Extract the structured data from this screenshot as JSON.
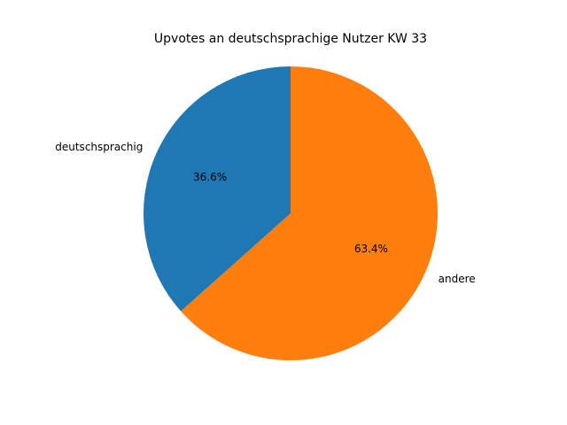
{
  "chart_data": {
    "type": "pie",
    "title": "Upvotes an deutschsprachige Nutzer KW 33",
    "categories": [
      "deutschsprachig",
      "andere"
    ],
    "values": [
      36.6,
      63.4
    ],
    "value_labels": [
      "36.6%",
      "63.4%"
    ],
    "colors": [
      "#1f77b4",
      "#ff7f0e"
    ]
  }
}
